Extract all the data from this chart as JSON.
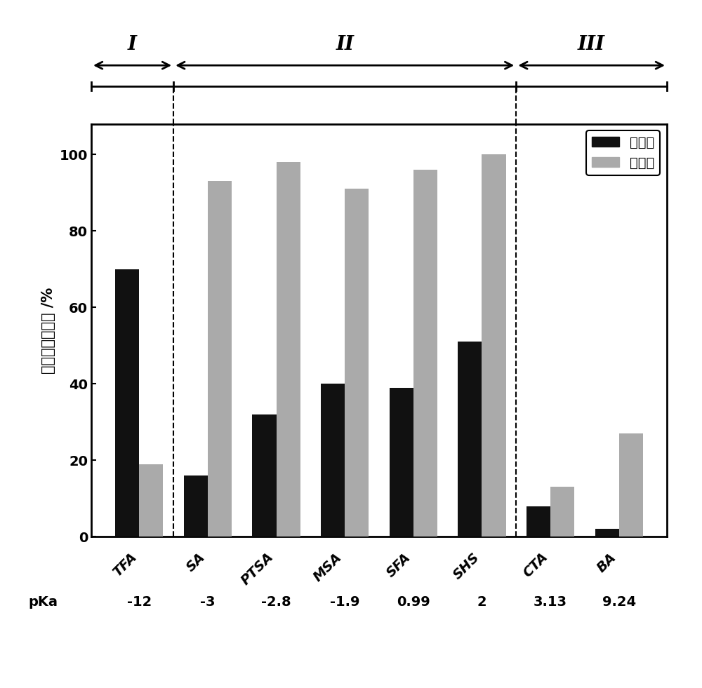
{
  "categories": [
    "TFA",
    "SA",
    "PTSA",
    "MSA",
    "SFA",
    "SHS",
    "CTA",
    "BA"
  ],
  "pka_values": [
    "-12",
    "-3",
    "-2.8",
    "-1.9",
    "0.99",
    "2",
    "3.13",
    "9.24"
  ],
  "conversion": [
    70,
    16,
    32,
    40,
    39,
    51,
    8,
    2
  ],
  "selectivity": [
    19,
    93,
    98,
    91,
    96,
    100,
    13,
    27
  ],
  "bar_width": 0.35,
  "conversion_color": "#111111",
  "selectivity_color": "#aaaaaa",
  "ylabel": "转化率和选择性 /%",
  "pka_label": "pKa",
  "legend_conversion": "转化率",
  "legend_selectivity": "选择性",
  "ylim": [
    0,
    108
  ],
  "yticks": [
    0,
    20,
    40,
    60,
    80,
    100
  ],
  "region_labels": [
    "I",
    "II",
    "III"
  ],
  "background_color": "#ffffff",
  "axis_fontsize": 15,
  "tick_fontsize": 14,
  "legend_fontsize": 14,
  "category_fontsize": 14,
  "pka_fontsize": 14,
  "region_fontsize": 20
}
